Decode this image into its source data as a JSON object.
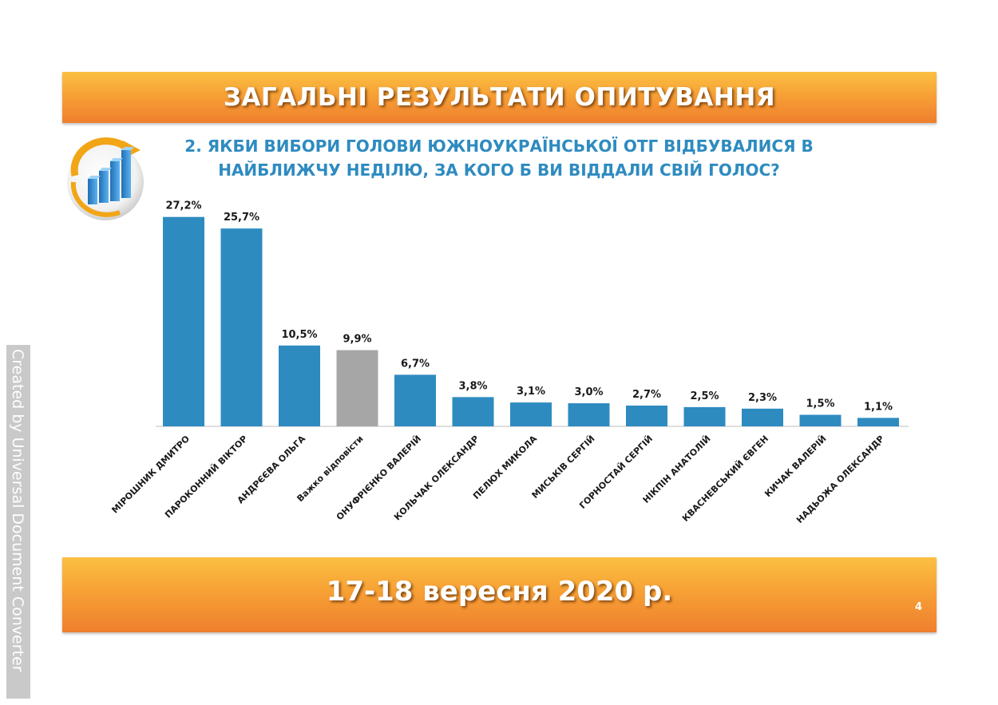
{
  "header": {
    "title": "ЗАГАЛЬНІ РЕЗУЛЬТАТИ ОПИТУВАННЯ"
  },
  "question": {
    "line1": "2. ЯКБИ ВИБОРИ ГОЛОВИ ЮЖНОУКРАЇНСЬКОЇ ОТГ ВІДБУВАЛИСЯ В",
    "line2": "НАЙБЛИЖЧУ НЕДІЛЮ, ЗА КОГО Б ВИ ВІДДАЛИ СВІЙ ГОЛОС?"
  },
  "footer": {
    "date": "17-18 вересня 2020 р.",
    "page_number": "4"
  },
  "watermark": "Created by Universal Document Converter",
  "colors": {
    "bar": "#2e8bc0",
    "bar_highlight": "#a6a6a6",
    "banner": "#f7a135",
    "question": "#2e8bc0"
  },
  "chart_data": {
    "type": "bar",
    "categories": [
      "МІРОШНИК ДМИТРО",
      "ПАРОКОННИЙ ВІКТОР",
      "АНДРЄЄВА ОЛЬГА",
      "Важко відповісти",
      "ОНУФРІЄНКО ВАЛЕРІЙ",
      "КОЛЬЧАК ОЛЕКСАНДР",
      "ПЕЛЮХ МИКОЛА",
      "МИСЬКІВ СЕРГІЙ",
      "ГОРНОСТАЙ СЕРГІЙ",
      "НІКПІН АНАТОЛІЙ",
      "КВАСНЕВСЬКИЙ ЄВГЕН",
      "КИЧАК ВАЛЕРІЙ",
      "НАДЬОЖА ОЛЕКСАНДР"
    ],
    "values": [
      27.2,
      25.7,
      10.5,
      9.9,
      6.7,
      3.8,
      3.1,
      3.0,
      2.7,
      2.5,
      2.3,
      1.5,
      1.1
    ],
    "value_labels": [
      "27,2%",
      "25,7%",
      "10,5%",
      "9,9%",
      "6,7%",
      "3,8%",
      "3,1%",
      "3,0%",
      "2,7%",
      "2,5%",
      "2,3%",
      "1,5%",
      "1,1%"
    ],
    "highlight_category": "Важко відповісти",
    "ylim": [
      0,
      28
    ],
    "grid": false,
    "legend": "none"
  }
}
